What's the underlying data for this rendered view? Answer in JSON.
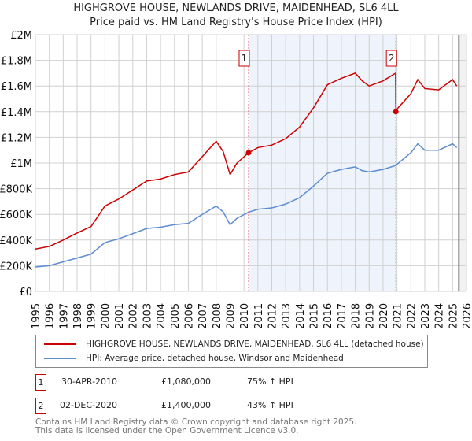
{
  "chart_data": {
    "type": "line",
    "title": "HIGHGROVE HOUSE, NEWLANDS DRIVE, MAIDENHEAD, SL6 4LL",
    "subtitle": "Price paid vs. HM Land Registry's House Price Index (HPI)",
    "xlim": [
      1995,
      2026
    ],
    "ylim": [
      0,
      2000000
    ],
    "x_ticks": [
      "1995",
      "1996",
      "1997",
      "1998",
      "1999",
      "2000",
      "2001",
      "2002",
      "2003",
      "2004",
      "2005",
      "2006",
      "2007",
      "2008",
      "2009",
      "2010",
      "2011",
      "2012",
      "2013",
      "2014",
      "2015",
      "2016",
      "2017",
      "2018",
      "2019",
      "2020",
      "2021",
      "2022",
      "2023",
      "2024",
      "2025",
      "2026"
    ],
    "y_ticks": [
      {
        "v": 0,
        "label": "£0"
      },
      {
        "v": 200000,
        "label": "£200K"
      },
      {
        "v": 400000,
        "label": "£400K"
      },
      {
        "v": 600000,
        "label": "£600K"
      },
      {
        "v": 800000,
        "label": "£800K"
      },
      {
        "v": 1000000,
        "label": "£1M"
      },
      {
        "v": 1200000,
        "label": "£1.2M"
      },
      {
        "v": 1400000,
        "label": "£1.4M"
      },
      {
        "v": 1600000,
        "label": "£1.6M"
      },
      {
        "v": 1800000,
        "label": "£1.8M"
      },
      {
        "v": 2000000,
        "label": "£2M"
      }
    ],
    "series": [
      {
        "name": "HIGHGROVE HOUSE, NEWLANDS DRIVE, MAIDENHEAD, SL6 4LL (detached house)",
        "color": "#cc0000",
        "x": [
          1995,
          1996,
          1997,
          1998,
          1999,
          2000,
          2001,
          2002,
          2003,
          2004,
          2005,
          2006,
          2007,
          2008,
          2008.5,
          2009,
          2009.5,
          2010.33,
          2011,
          2012,
          2013,
          2014,
          2015,
          2016,
          2017,
          2018,
          2018.5,
          2019,
          2020,
          2020.9,
          2020.92,
          2021,
          2022,
          2022.5,
          2023,
          2024,
          2025,
          2025.3
        ],
        "y": [
          330000,
          350000,
          400000,
          455000,
          505000,
          665000,
          720000,
          790000,
          860000,
          875000,
          910000,
          930000,
          1050000,
          1170000,
          1090000,
          910000,
          1000000,
          1080000,
          1120000,
          1140000,
          1190000,
          1280000,
          1430000,
          1610000,
          1660000,
          1700000,
          1640000,
          1600000,
          1640000,
          1700000,
          1400000,
          1420000,
          1540000,
          1650000,
          1580000,
          1570000,
          1650000,
          1600000
        ]
      },
      {
        "name": "HPI: Average price, detached house, Windsor and Maidenhead",
        "color": "#5b8bd0",
        "x": [
          1995,
          1996,
          1997,
          1998,
          1999,
          2000,
          2001,
          2002,
          2003,
          2004,
          2005,
          2006,
          2007,
          2008,
          2008.5,
          2009,
          2009.5,
          2010.33,
          2011,
          2012,
          2013,
          2014,
          2015,
          2016,
          2017,
          2018,
          2018.5,
          2019,
          2020,
          2020.9,
          2021,
          2022,
          2022.5,
          2023,
          2024,
          2025,
          2025.3
        ],
        "y": [
          190000,
          200000,
          230000,
          260000,
          290000,
          380000,
          410000,
          450000,
          490000,
          500000,
          520000,
          530000,
          600000,
          665000,
          620000,
          520000,
          570000,
          617000,
          640000,
          650000,
          680000,
          730000,
          820000,
          920000,
          950000,
          970000,
          940000,
          930000,
          950000,
          980000,
          990000,
          1080000,
          1150000,
          1100000,
          1100000,
          1150000,
          1120000
        ]
      }
    ],
    "sales": [
      {
        "label": "1",
        "date": "30-APR-2010",
        "x": 2010.33,
        "price": "£1,080,000",
        "value": 1080000,
        "hpi": "75% ↑ HPI"
      },
      {
        "label": "2",
        "date": "02-DEC-2020",
        "x": 2020.92,
        "price": "£1,400,000",
        "value": 1400000,
        "hpi": "43% ↑ HPI"
      }
    ]
  },
  "footer": [
    "Contains HM Land Registry data © Crown copyright and database right 2025.",
    "This data is licensed under the Open Government Licence v3.0."
  ]
}
